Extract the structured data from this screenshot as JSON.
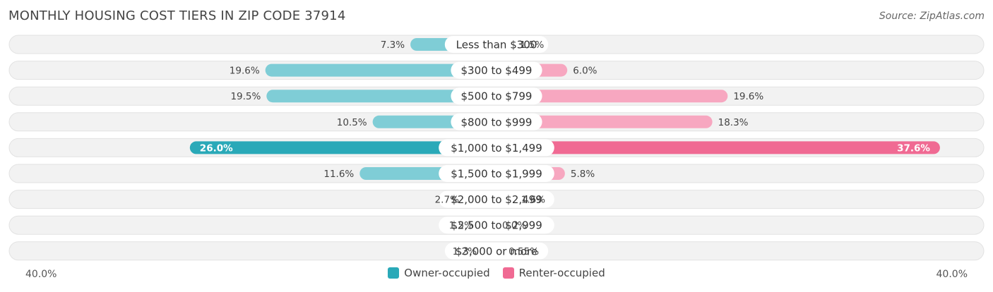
{
  "header": {
    "title": "MONTHLY HOUSING COST TIERS IN ZIP CODE 37914",
    "source": "Source: ZipAtlas.com"
  },
  "axis": {
    "left_label": "40.0%",
    "right_label": "40.0%"
  },
  "legend": {
    "owner_label": "Owner-occupied",
    "renter_label": "Renter-occupied"
  },
  "colors": {
    "owner": "#2aa9b8",
    "owner_light": "#7fcdd6",
    "renter": "#f06a93",
    "renter_light": "#f7a7c0",
    "row_bg": "#f2f2f2"
  },
  "chart_data": {
    "type": "bar",
    "orientation": "diverging-horizontal",
    "axis_max": 40.0,
    "categories": [
      "Less than $300",
      "$300 to $499",
      "$500 to $799",
      "$800 to $999",
      "$1,000 to $1,499",
      "$1,500 to $1,999",
      "$2,000 to $2,499",
      "$2,500 to $2,999",
      "$3,000 or more"
    ],
    "series": [
      {
        "name": "Owner-occupied",
        "values": [
          7.3,
          19.6,
          19.5,
          10.5,
          26.0,
          11.6,
          2.7,
          1.5,
          1.2
        ],
        "labels": [
          "7.3%",
          "19.6%",
          "19.5%",
          "10.5%",
          "26.0%",
          "11.6%",
          "2.7%",
          "1.5%",
          "1.2%"
        ]
      },
      {
        "name": "Renter-occupied",
        "values": [
          1.5,
          6.0,
          19.6,
          18.3,
          37.6,
          5.8,
          1.6,
          0.0,
          0.55
        ],
        "labels": [
          "1.5%",
          "6.0%",
          "19.6%",
          "18.3%",
          "37.6%",
          "5.8%",
          "1.6%",
          "0.0%",
          "0.55%"
        ]
      }
    ],
    "highlight_index": 4
  }
}
